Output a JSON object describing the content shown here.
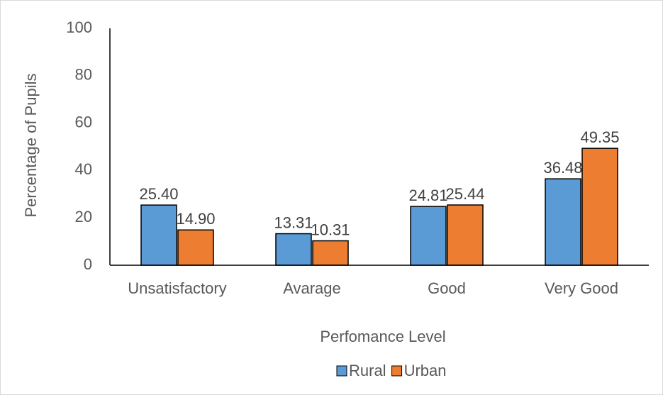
{
  "chart_data": {
    "type": "bar",
    "categories": [
      "Unsatisfactory",
      "Avarage",
      "Good",
      "Very Good"
    ],
    "series": [
      {
        "name": "Rural",
        "color": "#5b9bd5",
        "values": [
          25.4,
          13.31,
          24.81,
          36.48
        ],
        "value_labels": [
          "25.40",
          "13.31",
          "24.81",
          "36.48"
        ]
      },
      {
        "name": "Urban",
        "color": "#ed7d31",
        "values": [
          14.9,
          10.31,
          25.44,
          49.35
        ],
        "value_labels": [
          "14.90",
          "10.31",
          "25.44",
          "49.35"
        ]
      }
    ],
    "xlabel": "Perfomance Level",
    "ylabel": "Percentage of Pupils",
    "ylim": [
      0,
      100
    ],
    "yticks": [
      0,
      20,
      40,
      60,
      80,
      100
    ],
    "grid": false,
    "legend": "bottom"
  }
}
